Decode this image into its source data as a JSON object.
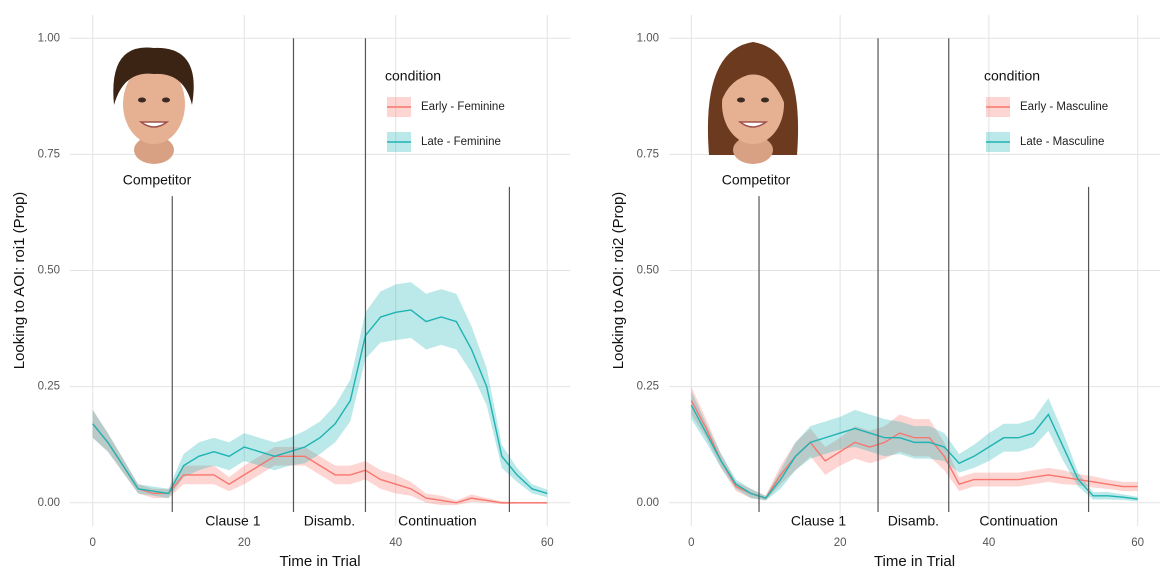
{
  "chart_data": [
    {
      "type": "line",
      "x": [
        0,
        2,
        4,
        6,
        8,
        10,
        12,
        14,
        16,
        18,
        20,
        22,
        24,
        26,
        28,
        30,
        32,
        34,
        36,
        38,
        40,
        42,
        44,
        46,
        48,
        50,
        52,
        54,
        56,
        58,
        60
      ],
      "series": [
        {
          "name": "Early - Feminine",
          "color": "#f8766d",
          "values": [
            0.17,
            0.13,
            0.08,
            0.03,
            0.02,
            0.02,
            0.06,
            0.06,
            0.06,
            0.04,
            0.06,
            0.08,
            0.1,
            0.1,
            0.1,
            0.08,
            0.06,
            0.06,
            0.07,
            0.05,
            0.04,
            0.03,
            0.01,
            0.005,
            0,
            0.01,
            0.005,
            0,
            0,
            0,
            0
          ],
          "errors": [
            0.03,
            0.02,
            0.015,
            0.01,
            0.01,
            0.01,
            0.02,
            0.02,
            0.02,
            0.015,
            0.02,
            0.02,
            0.02,
            0.02,
            0.02,
            0.02,
            0.02,
            0.02,
            0.02,
            0.02,
            0.02,
            0.015,
            0.01,
            0.01,
            0.005,
            0.008,
            0.005,
            0.003,
            0.002,
            0.002,
            0.002
          ]
        },
        {
          "name": "Late - Feminine",
          "color": "#1fb3b3",
          "values": [
            0.17,
            0.13,
            0.08,
            0.03,
            0.025,
            0.02,
            0.08,
            0.1,
            0.11,
            0.1,
            0.12,
            0.11,
            0.1,
            0.11,
            0.12,
            0.14,
            0.17,
            0.22,
            0.36,
            0.4,
            0.41,
            0.415,
            0.39,
            0.4,
            0.39,
            0.33,
            0.25,
            0.1,
            0.06,
            0.03,
            0.02
          ],
          "errors": [
            0.03,
            0.02,
            0.015,
            0.01,
            0.01,
            0.01,
            0.025,
            0.03,
            0.03,
            0.03,
            0.03,
            0.03,
            0.03,
            0.03,
            0.035,
            0.035,
            0.04,
            0.045,
            0.05,
            0.055,
            0.06,
            0.06,
            0.06,
            0.06,
            0.06,
            0.05,
            0.04,
            0.025,
            0.015,
            0.01,
            0.008
          ]
        }
      ],
      "xlim": [
        -3,
        63
      ],
      "ylim": [
        -0.05,
        1.05
      ],
      "xticks": [
        0,
        20,
        40,
        60
      ],
      "yticks": [
        {
          "value": 0,
          "label": "0.00"
        },
        {
          "value": 0.25,
          "label": "0.25"
        },
        {
          "value": 0.5,
          "label": "0.50"
        },
        {
          "value": 0.75,
          "label": "0.75"
        },
        {
          "value": 1,
          "label": "1.00"
        }
      ],
      "grid": true,
      "xlabel": "Time in Trial",
      "ylabel": "Looking to AOI:  roi1 (Prop)",
      "legend_title": "condition",
      "legend_position": "top-right",
      "vlines": [
        {
          "x": 10.5,
          "ymax": 0.66
        },
        {
          "x": 26.5,
          "ymax": 1
        },
        {
          "x": 36,
          "ymax": 1
        },
        {
          "x": 55,
          "ymax": 0.68
        }
      ],
      "regions": [
        "Clause 1",
        "Disamb.",
        "Continuation"
      ],
      "image_caption": "Competitor"
    },
    {
      "type": "line",
      "x": [
        0,
        2,
        4,
        6,
        8,
        10,
        12,
        14,
        16,
        18,
        20,
        22,
        24,
        26,
        28,
        30,
        32,
        34,
        36,
        38,
        40,
        42,
        44,
        46,
        48,
        50,
        52,
        54,
        56,
        58,
        60
      ],
      "series": [
        {
          "name": "Early - Masculine",
          "color": "#f8766d",
          "values": [
            0.22,
            0.16,
            0.09,
            0.035,
            0.02,
            0.01,
            0.06,
            0.1,
            0.13,
            0.09,
            0.11,
            0.13,
            0.12,
            0.13,
            0.15,
            0.14,
            0.14,
            0.1,
            0.04,
            0.05,
            0.05,
            0.05,
            0.05,
            0.055,
            0.06,
            0.055,
            0.05,
            0.045,
            0.04,
            0.035,
            0.035
          ],
          "errors": [
            0.03,
            0.02,
            0.015,
            0.01,
            0.01,
            0.005,
            0.02,
            0.03,
            0.03,
            0.03,
            0.03,
            0.035,
            0.035,
            0.035,
            0.04,
            0.04,
            0.04,
            0.03,
            0.015,
            0.015,
            0.015,
            0.015,
            0.015,
            0.015,
            0.015,
            0.015,
            0.012,
            0.012,
            0.01,
            0.01,
            0.01
          ]
        },
        {
          "name": "Late - Masculine",
          "color": "#1fb3b3",
          "values": [
            0.21,
            0.15,
            0.09,
            0.04,
            0.02,
            0.01,
            0.05,
            0.1,
            0.13,
            0.14,
            0.15,
            0.16,
            0.15,
            0.14,
            0.14,
            0.13,
            0.13,
            0.12,
            0.085,
            0.1,
            0.12,
            0.14,
            0.14,
            0.15,
            0.19,
            0.12,
            0.05,
            0.015,
            0.015,
            0.012,
            0.008
          ],
          "errors": [
            0.03,
            0.02,
            0.015,
            0.01,
            0.01,
            0.005,
            0.02,
            0.03,
            0.035,
            0.035,
            0.035,
            0.04,
            0.04,
            0.04,
            0.035,
            0.035,
            0.035,
            0.03,
            0.02,
            0.025,
            0.03,
            0.03,
            0.03,
            0.03,
            0.035,
            0.03,
            0.015,
            0.008,
            0.008,
            0.006,
            0.005
          ]
        }
      ],
      "xlim": [
        -3,
        63
      ],
      "ylim": [
        -0.05,
        1.05
      ],
      "xticks": [
        0,
        20,
        40,
        60
      ],
      "yticks": [
        {
          "value": 0,
          "label": "0.00"
        },
        {
          "value": 0.25,
          "label": "0.25"
        },
        {
          "value": 0.5,
          "label": "0.50"
        },
        {
          "value": 0.75,
          "label": "0.75"
        },
        {
          "value": 1,
          "label": "1.00"
        }
      ],
      "grid": true,
      "xlabel": "Time in Trial",
      "ylabel": "Looking to AOI:  roi2 (Prop)",
      "legend_title": "condition",
      "legend_position": "top-right",
      "vlines": [
        {
          "x": 9.1,
          "ymax": 0.66
        },
        {
          "x": 25.1,
          "ymax": 1
        },
        {
          "x": 34.6,
          "ymax": 1
        },
        {
          "x": 53.4,
          "ymax": 0.68
        }
      ],
      "regions": [
        "Clause 1",
        "Disamb.",
        "Continuation"
      ],
      "image_caption": "Competitor"
    }
  ]
}
